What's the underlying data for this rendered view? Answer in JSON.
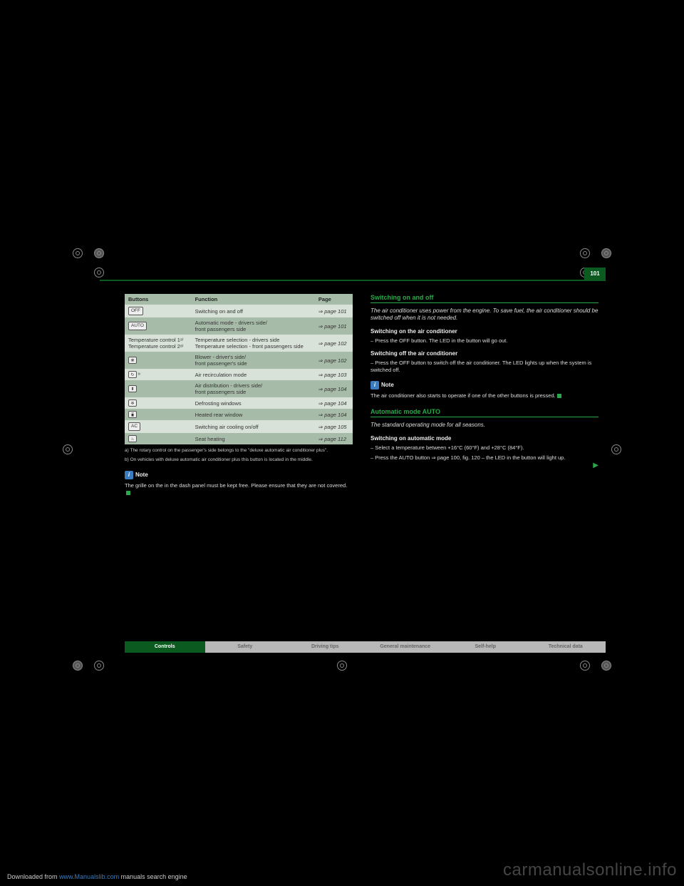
{
  "page_number": "101",
  "table": {
    "headers": [
      "Buttons",
      "Function",
      "Page"
    ],
    "rows": [
      {
        "key_label": "OFF",
        "key_type": "text",
        "fn": "Switching on and off",
        "page": "page 101"
      },
      {
        "key_label": "AUTO",
        "key_type": "text",
        "fn": "Automatic mode - drivers side/\nfront passengers side",
        "page": "page 101"
      },
      {
        "key_label": "Temperature control 1ᵃ⁾\nTemperature control 2ᵃ⁾",
        "key_type": "plain",
        "fn": "Temperature selection - drivers side\nTemperature selection - front passengers side",
        "page": "page 102"
      },
      {
        "key_label": "❋",
        "key_type": "icon",
        "fn": "Blower - driver's side/\nfront passenger's side",
        "page": "page 102"
      },
      {
        "key_label": "↻ ᵇ⁾",
        "key_type": "icon-sup",
        "fn": "Air recirculation mode",
        "page": "page 103"
      },
      {
        "key_label": "⬍",
        "key_type": "icon",
        "fn": "Air distribution - drivers side/\nfront passengers side",
        "page": "page 104"
      },
      {
        "key_label": "❄",
        "key_type": "icon",
        "fn": "Defrosting windows",
        "page": "page 104"
      },
      {
        "key_label": "⧯",
        "key_type": "icon",
        "fn": "Heated rear window",
        "page": "page 104"
      },
      {
        "key_label": "AC",
        "key_type": "text",
        "fn": "Switching air cooling on/off",
        "page": "page 105"
      },
      {
        "key_label": "♨",
        "key_type": "icon",
        "fn": "Seat heating",
        "page": "page 112"
      }
    ]
  },
  "footnote_a": "a) The rotary control on the passenger's side belongs to the \"deluxe automatic air conditioner plus\".",
  "footnote_b": "b) On vehicles with deluxe automatic air conditioner plus this button is located in the middle.",
  "left_note_title": "Note",
  "left_note_body": "The grille on the in the dash panel must be kept free. Please ensure that they are not covered.",
  "right": {
    "h1": "Switching on and off",
    "h1_sub": "The air conditioner uses power from the engine. To save fuel, the air conditioner should be switched off when it is not needed.",
    "proc1_title": "Switching on the air conditioner",
    "proc1_text": "Press the OFF button. The LED in the button will go out.",
    "proc2_title": "Switching off the air conditioner",
    "proc2_text": "Press the OFF button to switch off the air conditioner. The LED lights up when the system is switched off.",
    "right_note_title": "Note",
    "right_note_body": "The air conditioner also starts to operate if one of the other buttons is pressed.",
    "h2": "Automatic mode AUTO",
    "h2_sub": "The standard operating mode for all seasons.",
    "proc3_title": "Switching on automatic mode",
    "proc3_line1": "Select a temperature between +16°C (60°F) and +28°C (84°F).",
    "proc3_line2": "Press the AUTO button ⇒ page 100, fig. 120 – the LED in the button will light up."
  },
  "tabs": [
    "Controls",
    "Safety",
    "Driving tips",
    "General maintenance",
    "Self-help",
    "Technical data"
  ],
  "watermark": "carmanualsonline.info",
  "dl_footer_prefix": "Downloaded from ",
  "dl_footer_link": "www.Manualslib.com",
  "dl_footer_suffix": " manuals search engine",
  "colors": {
    "green_dark": "#0b5a1f",
    "green_link": "#2aa84a",
    "table_header": "#a7bca8",
    "table_odd": "#a7bca8",
    "table_even": "#d8e2d8"
  }
}
